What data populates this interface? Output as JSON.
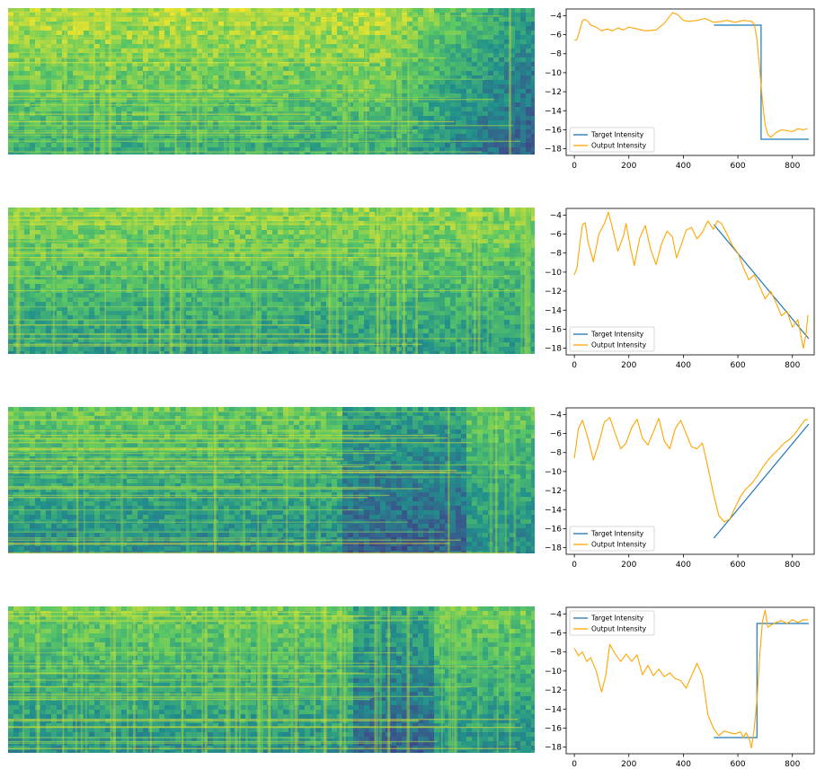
{
  "colors": {
    "target": "#1f77b4",
    "output": "#ffa500",
    "axis": "#000000",
    "colormap": [
      "#440154",
      "#3b528b",
      "#21918c",
      "#5ec962",
      "#fde725"
    ]
  },
  "legend": {
    "target_label": "Target Intensity",
    "output_label": "Output Intensity"
  },
  "chart_data": [
    {
      "type": "line",
      "xlim": [
        -30,
        880
      ],
      "ylim": [
        -18.7,
        -3.3
      ],
      "xticks": [
        0,
        200,
        400,
        600,
        800
      ],
      "xtick_labels": [
        "0",
        "200",
        "400",
        "600",
        "800"
      ],
      "yticks": [
        -4,
        -6,
        -8,
        -10,
        -12,
        -14,
        -16,
        -18
      ],
      "ytick_labels": [
        "−4",
        "−6",
        "−8",
        "−10",
        "−12",
        "−14",
        "−16",
        "−18"
      ],
      "legend_position": "lower-left",
      "grid": false,
      "target": {
        "x": [
          512,
          685,
          685,
          860
        ],
        "y": [
          -5,
          -5,
          -17,
          -17
        ]
      },
      "output": {
        "x": [
          0,
          10,
          20,
          30,
          40,
          50,
          60,
          80,
          100,
          120,
          140,
          160,
          180,
          200,
          230,
          260,
          300,
          330,
          360,
          380,
          400,
          420,
          450,
          480,
          510,
          540,
          560,
          590,
          620,
          650,
          660,
          670,
          680,
          690,
          700,
          710,
          720,
          740,
          760,
          780,
          800,
          820,
          840,
          855
        ],
        "y": [
          -6.6,
          -6.5,
          -5.5,
          -4.5,
          -4.4,
          -4.6,
          -5.0,
          -5.2,
          -5.6,
          -5.4,
          -5.6,
          -5.3,
          -5.5,
          -5.2,
          -5.4,
          -5.6,
          -5.5,
          -4.8,
          -3.7,
          -3.9,
          -4.5,
          -4.6,
          -4.5,
          -4.3,
          -4.7,
          -4.6,
          -4.5,
          -4.7,
          -4.5,
          -4.6,
          -4.9,
          -6.5,
          -9.5,
          -13.0,
          -15.5,
          -16.5,
          -16.8,
          -16.3,
          -16.0,
          -16.1,
          -16.2,
          -15.9,
          -16.0,
          -15.9
        ]
      }
    },
    {
      "type": "line",
      "xlim": [
        -30,
        880
      ],
      "ylim": [
        -18.7,
        -3.3
      ],
      "xticks": [
        0,
        200,
        400,
        600,
        800
      ],
      "xtick_labels": [
        "0",
        "200",
        "400",
        "600",
        "800"
      ],
      "yticks": [
        -4,
        -6,
        -8,
        -10,
        -12,
        -14,
        -16,
        -18
      ],
      "ytick_labels": [
        "−4",
        "−6",
        "−8",
        "−10",
        "−12",
        "−14",
        "−16",
        "−18"
      ],
      "legend_position": "lower-left",
      "grid": false,
      "target": {
        "x": [
          512,
          860
        ],
        "y": [
          -5,
          -17
        ]
      },
      "output": {
        "x": [
          0,
          10,
          20,
          30,
          40,
          50,
          70,
          90,
          110,
          125,
          140,
          160,
          180,
          190,
          205,
          220,
          240,
          260,
          280,
          300,
          320,
          340,
          360,
          375,
          390,
          410,
          430,
          450,
          470,
          490,
          510,
          525,
          540,
          560,
          580,
          600,
          620,
          640,
          660,
          680,
          700,
          720,
          740,
          760,
          780,
          800,
          820,
          840,
          850,
          857
        ],
        "y": [
          -10.3,
          -9.5,
          -7.0,
          -5.0,
          -4.8,
          -6.8,
          -8.9,
          -6.0,
          -4.9,
          -3.7,
          -5.4,
          -7.8,
          -6.2,
          -4.9,
          -7.3,
          -9.3,
          -6.4,
          -5.1,
          -7.6,
          -9.2,
          -7.0,
          -5.7,
          -6.3,
          -8.5,
          -7.3,
          -5.6,
          -5.3,
          -6.5,
          -5.8,
          -4.6,
          -5.5,
          -4.6,
          -4.9,
          -6.0,
          -7.2,
          -8.0,
          -9.5,
          -10.8,
          -10.3,
          -11.5,
          -12.8,
          -12.0,
          -13.2,
          -14.6,
          -14.1,
          -15.8,
          -15.0,
          -18.0,
          -16.5,
          -14.5
        ]
      }
    },
    {
      "type": "line",
      "xlim": [
        -30,
        880
      ],
      "ylim": [
        -18.7,
        -3.3
      ],
      "xticks": [
        0,
        200,
        400,
        600,
        800
      ],
      "xtick_labels": [
        "0",
        "200",
        "400",
        "600",
        "800"
      ],
      "yticks": [
        -4,
        -6,
        -8,
        -10,
        -12,
        -14,
        -16,
        -18
      ],
      "ytick_labels": [
        "−4",
        "−6",
        "−8",
        "−10",
        "−12",
        "−14",
        "−16",
        "−18"
      ],
      "legend_position": "lower-left",
      "grid": false,
      "target": {
        "x": [
          512,
          860
        ],
        "y": [
          -17,
          -5
        ]
      },
      "output": {
        "x": [
          0,
          15,
          30,
          50,
          70,
          90,
          110,
          130,
          150,
          170,
          190,
          210,
          230,
          250,
          270,
          290,
          310,
          330,
          350,
          370,
          390,
          410,
          430,
          450,
          470,
          490,
          510,
          530,
          550,
          570,
          590,
          610,
          630,
          650,
          670,
          690,
          710,
          730,
          750,
          770,
          790,
          810,
          830,
          845,
          857
        ],
        "y": [
          -8.6,
          -5.5,
          -4.6,
          -6.5,
          -8.8,
          -7.0,
          -4.8,
          -4.3,
          -6.0,
          -7.6,
          -7.0,
          -5.4,
          -4.5,
          -6.5,
          -7.2,
          -5.8,
          -4.4,
          -6.8,
          -7.6,
          -5.5,
          -4.6,
          -6.0,
          -7.4,
          -7.6,
          -7.0,
          -9.5,
          -12.3,
          -14.6,
          -15.3,
          -15.0,
          -13.8,
          -12.6,
          -11.8,
          -11.3,
          -10.5,
          -9.6,
          -8.8,
          -8.2,
          -7.6,
          -7.0,
          -6.6,
          -6.0,
          -5.2,
          -4.6,
          -4.5
        ]
      }
    },
    {
      "type": "line",
      "xlim": [
        -30,
        880
      ],
      "ylim": [
        -18.7,
        -3.3
      ],
      "xticks": [
        0,
        200,
        400,
        600,
        800
      ],
      "xtick_labels": [
        "0",
        "200",
        "400",
        "600",
        "800"
      ],
      "yticks": [
        -4,
        -6,
        -8,
        -10,
        -12,
        -14,
        -16,
        -18
      ],
      "ytick_labels": [
        "−4",
        "−6",
        "−8",
        "−10",
        "−12",
        "−14",
        "−16",
        "−18"
      ],
      "legend_position": "upper-left",
      "grid": false,
      "target": {
        "x": [
          512,
          670,
          670,
          860
        ],
        "y": [
          -17,
          -17,
          -5,
          -5
        ]
      },
      "output": {
        "x": [
          0,
          15,
          30,
          45,
          60,
          80,
          100,
          115,
          130,
          150,
          170,
          190,
          210,
          230,
          250,
          270,
          290,
          310,
          330,
          350,
          370,
          390,
          410,
          430,
          450,
          470,
          490,
          510,
          530,
          550,
          570,
          590,
          610,
          620,
          630,
          640,
          650,
          660,
          670,
          680,
          690,
          700,
          710,
          720,
          740,
          760,
          780,
          800,
          820,
          840,
          857
        ],
        "y": [
          -7.6,
          -8.4,
          -8.0,
          -9.0,
          -8.6,
          -10.0,
          -12.2,
          -10.5,
          -7.2,
          -8.2,
          -9.0,
          -8.2,
          -9.0,
          -8.3,
          -10.4,
          -9.4,
          -10.5,
          -9.8,
          -10.6,
          -10.2,
          -10.8,
          -11.0,
          -11.8,
          -10.5,
          -9.2,
          -10.5,
          -14.6,
          -16.0,
          -16.8,
          -16.3,
          -16.5,
          -16.6,
          -16.4,
          -17.0,
          -16.5,
          -17.0,
          -18.1,
          -16.0,
          -13.0,
          -8.5,
          -4.8,
          -3.6,
          -5.4,
          -5.2,
          -4.9,
          -4.7,
          -5.0,
          -4.6,
          -4.9,
          -4.6,
          -4.6
        ]
      }
    }
  ]
}
